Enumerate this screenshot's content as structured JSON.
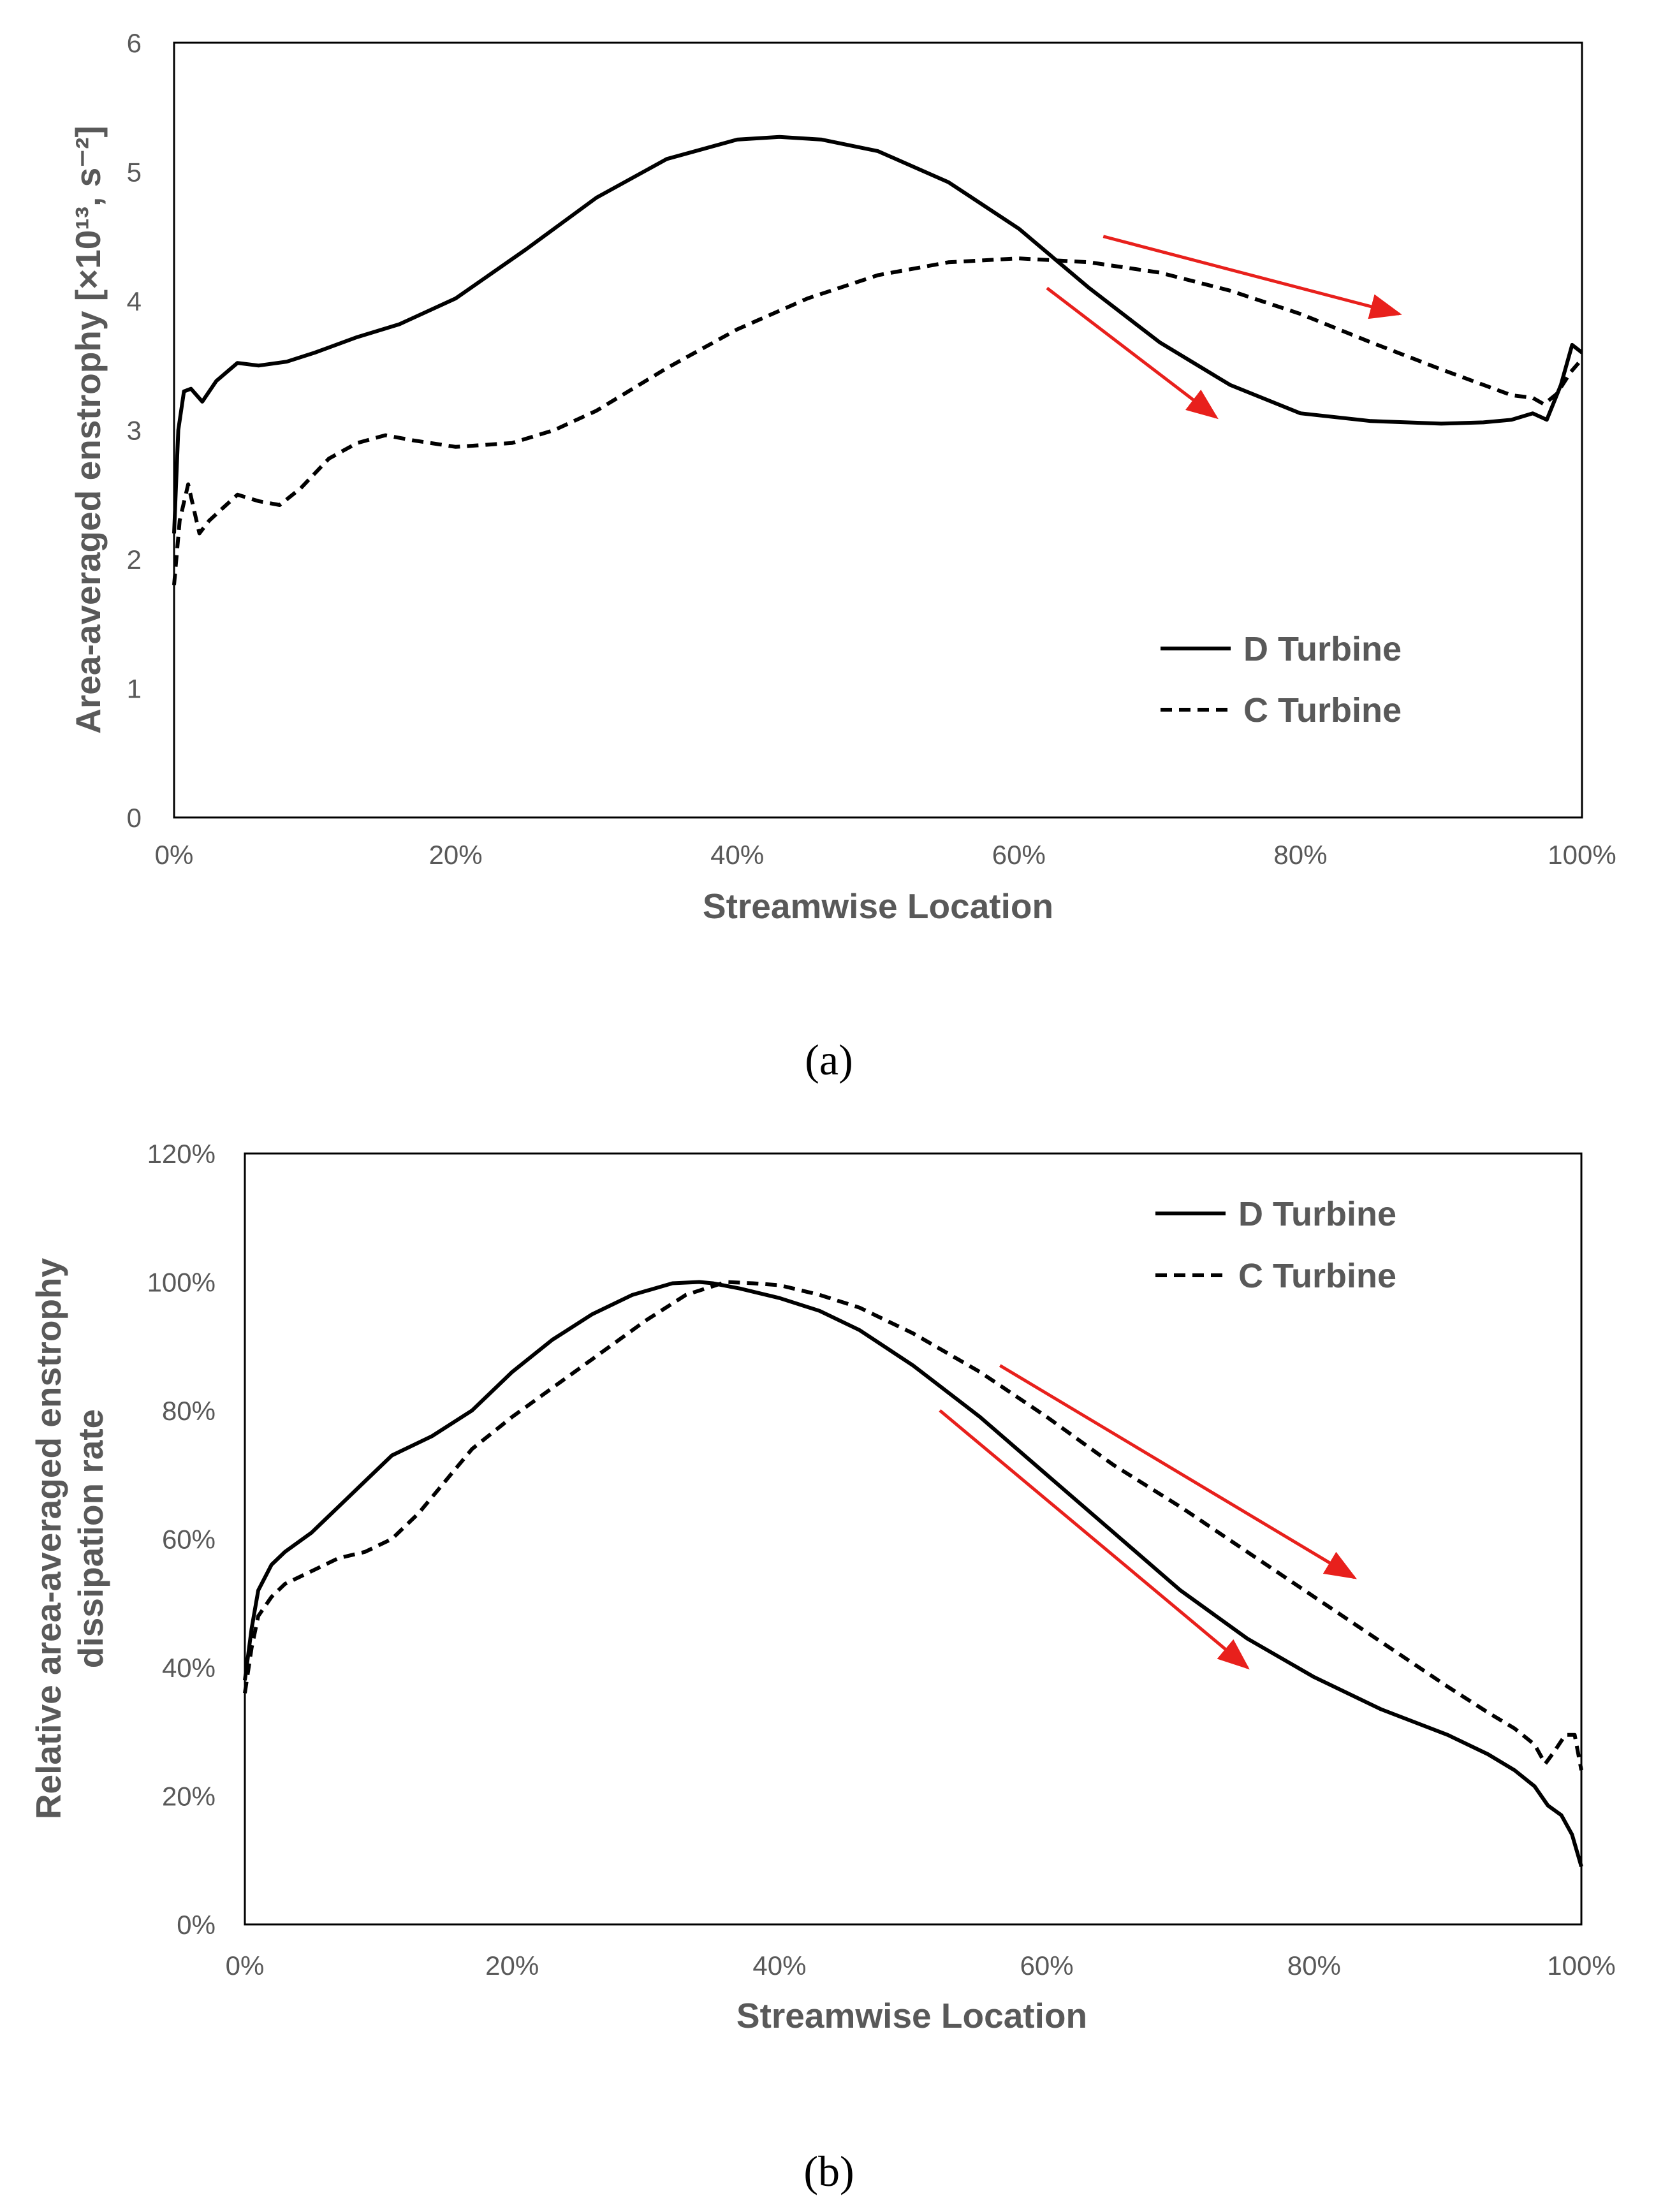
{
  "colors": {
    "series": "#000000",
    "arrow": "#e8201c",
    "text": "#595959",
    "axis": "#000000"
  },
  "chart_data": [
    {
      "type": "line",
      "panel_label": "a",
      "panel_label_text": "(a)",
      "title": "",
      "xlabel": "Streamwise Location",
      "ylabel": "Area-averaged enstrophy [×10¹³, s⁻²]",
      "xlim": [
        0,
        100
      ],
      "ylim": [
        0,
        6
      ],
      "x_ticks": [
        0,
        20,
        40,
        60,
        80,
        100
      ],
      "x_tick_labels": [
        "0%",
        "20%",
        "40%",
        "60%",
        "80%",
        "100%"
      ],
      "y_ticks": [
        0,
        1,
        2,
        3,
        4,
        5,
        6
      ],
      "y_tick_labels": [
        "0",
        "1",
        "2",
        "3",
        "4",
        "5",
        "6"
      ],
      "grid": false,
      "legend_position": "bottom-right",
      "series": [
        {
          "name": "D Turbine",
          "style": "solid",
          "x": [
            0,
            0.3,
            0.7,
            1.2,
            2,
            3,
            4.5,
            6,
            8,
            10,
            13,
            16,
            20,
            25,
            30,
            35,
            40,
            43,
            46,
            50,
            55,
            60,
            65,
            70,
            75,
            80,
            85,
            90,
            93,
            95,
            96.5,
            97.5,
            98.5,
            99.3,
            100
          ],
          "values": [
            2.2,
            3.0,
            3.3,
            3.32,
            3.22,
            3.38,
            3.52,
            3.5,
            3.53,
            3.6,
            3.72,
            3.82,
            4.02,
            4.4,
            4.8,
            5.1,
            5.25,
            5.27,
            5.25,
            5.16,
            4.92,
            4.56,
            4.1,
            3.68,
            3.35,
            3.13,
            3.07,
            3.05,
            3.06,
            3.08,
            3.13,
            3.08,
            3.35,
            3.66,
            3.6
          ]
        },
        {
          "name": "C Turbine",
          "style": "dashed",
          "x": [
            0,
            0.4,
            1,
            1.8,
            2.5,
            3.5,
            4.5,
            6,
            7.5,
            9,
            11,
            13,
            15,
            17,
            20,
            24,
            27,
            30,
            35,
            40,
            45,
            50,
            55,
            60,
            65,
            70,
            75,
            80,
            85,
            90,
            93,
            95,
            96.5,
            97.3,
            98.2,
            99.2,
            100
          ],
          "values": [
            1.8,
            2.3,
            2.58,
            2.2,
            2.3,
            2.4,
            2.5,
            2.45,
            2.42,
            2.55,
            2.78,
            2.9,
            2.96,
            2.92,
            2.87,
            2.9,
            3.0,
            3.15,
            3.48,
            3.78,
            4.02,
            4.2,
            4.3,
            4.33,
            4.3,
            4.22,
            4.08,
            3.9,
            3.68,
            3.47,
            3.35,
            3.27,
            3.25,
            3.2,
            3.28,
            3.45,
            3.55
          ]
        }
      ],
      "annotations": [
        {
          "type": "arrow",
          "from": [
            62,
            4.1
          ],
          "to": [
            74,
            3.1
          ]
        },
        {
          "type": "arrow",
          "from": [
            66,
            4.5
          ],
          "to": [
            87,
            3.9
          ]
        }
      ]
    },
    {
      "type": "line",
      "panel_label": "b",
      "panel_label_text": "(b)",
      "title": "",
      "xlabel": "Streamwise Location",
      "ylabel_lines": [
        "Relative area-averaged enstrophy",
        "dissipation rate"
      ],
      "xlim": [
        0,
        100
      ],
      "ylim": [
        0,
        120
      ],
      "x_ticks": [
        0,
        20,
        40,
        60,
        80,
        100
      ],
      "x_tick_labels": [
        "0%",
        "20%",
        "40%",
        "60%",
        "80%",
        "100%"
      ],
      "y_ticks": [
        0,
        20,
        40,
        60,
        80,
        100,
        120
      ],
      "y_tick_labels": [
        "0%",
        "20%",
        "40%",
        "60%",
        "80%",
        "100%",
        "120%"
      ],
      "grid": false,
      "legend_position": "top-right",
      "series": [
        {
          "name": "D Turbine",
          "style": "solid",
          "x": [
            0,
            0.5,
            1,
            2,
            3,
            5,
            7,
            9,
            11,
            14,
            17,
            20,
            23,
            26,
            29,
            32,
            34,
            35,
            37,
            40,
            43,
            46,
            50,
            55,
            60,
            65,
            70,
            75,
            80,
            85,
            90,
            93,
            95,
            96.5,
            97.5,
            98.5,
            99.3,
            100
          ],
          "values": [
            38,
            46,
            52,
            56,
            58,
            61,
            65,
            69,
            73,
            76,
            80,
            86,
            91,
            95,
            98,
            99.8,
            100,
            99.8,
            99,
            97.5,
            95.5,
            92.5,
            87,
            79,
            70,
            61,
            52,
            44.5,
            38.5,
            33.5,
            29.5,
            26.5,
            24,
            21.5,
            18.5,
            17,
            14,
            9
          ]
        },
        {
          "name": "C Turbine",
          "style": "dashed",
          "x": [
            0,
            0.5,
            1,
            2,
            3,
            5,
            7,
            9,
            11,
            13,
            15,
            17,
            20,
            23,
            26,
            30,
            33,
            36,
            38,
            40,
            43,
            46,
            50,
            55,
            60,
            65,
            70,
            75,
            80,
            85,
            90,
            93,
            95,
            96.5,
            97.3,
            98,
            98.8,
            99.5,
            100
          ],
          "values": [
            36,
            43,
            48,
            51,
            53,
            55,
            57,
            58,
            60,
            64,
            69,
            74,
            79,
            83.5,
            88,
            94,
            98,
            100,
            99.8,
            99.5,
            98,
            96,
            92,
            86,
            79,
            71.5,
            65,
            58,
            51,
            44,
            37,
            33,
            30.5,
            28,
            25,
            27,
            29.5,
            29.5,
            24
          ]
        }
      ],
      "annotations": [
        {
          "type": "arrow",
          "from": [
            52,
            80
          ],
          "to": [
            75,
            40
          ]
        },
        {
          "type": "arrow",
          "from": [
            56.5,
            87
          ],
          "to": [
            83,
            54
          ]
        }
      ]
    }
  ]
}
